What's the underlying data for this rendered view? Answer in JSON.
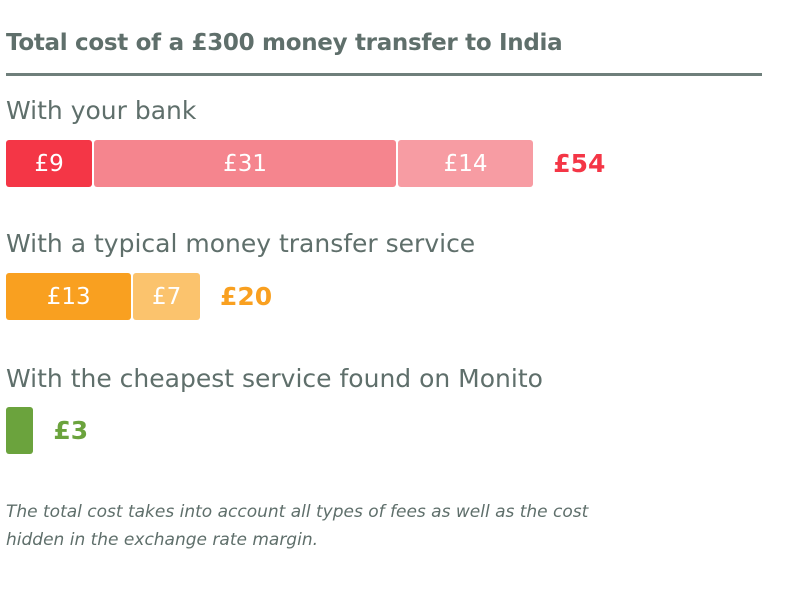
{
  "chart_data": {
    "type": "bar",
    "orientation": "horizontal",
    "stacked": true,
    "title": "Total cost of a £300 money transfer to India",
    "currency": "£",
    "groups": [
      {
        "label": "With your bank",
        "segments": [
          {
            "value": 9,
            "label": "£9",
            "color": "#f43646"
          },
          {
            "value": 31,
            "label": "£31",
            "color": "#f5858e"
          },
          {
            "value": 14,
            "label": "£14",
            "color": "#f79ca3"
          }
        ],
        "total": 54,
        "total_label": "£54",
        "total_color": "#f43646"
      },
      {
        "label": "With a typical money transfer service",
        "segments": [
          {
            "value": 13,
            "label": "£13",
            "color": "#f9a020"
          },
          {
            "value": 7,
            "label": "£7",
            "color": "#fbc36d"
          }
        ],
        "total": 20,
        "total_label": "£20",
        "total_color": "#f9a020"
      },
      {
        "label": "With the cheapest service found on Monito",
        "segments": [
          {
            "value": 3,
            "label": "",
            "color": "#6ba33d"
          }
        ],
        "total": 3,
        "total_label": "£3",
        "total_color": "#6ba33d"
      }
    ],
    "footnote": "The total cost takes into account all types of fees as well as the cost hidden in the exchange rate margin."
  }
}
